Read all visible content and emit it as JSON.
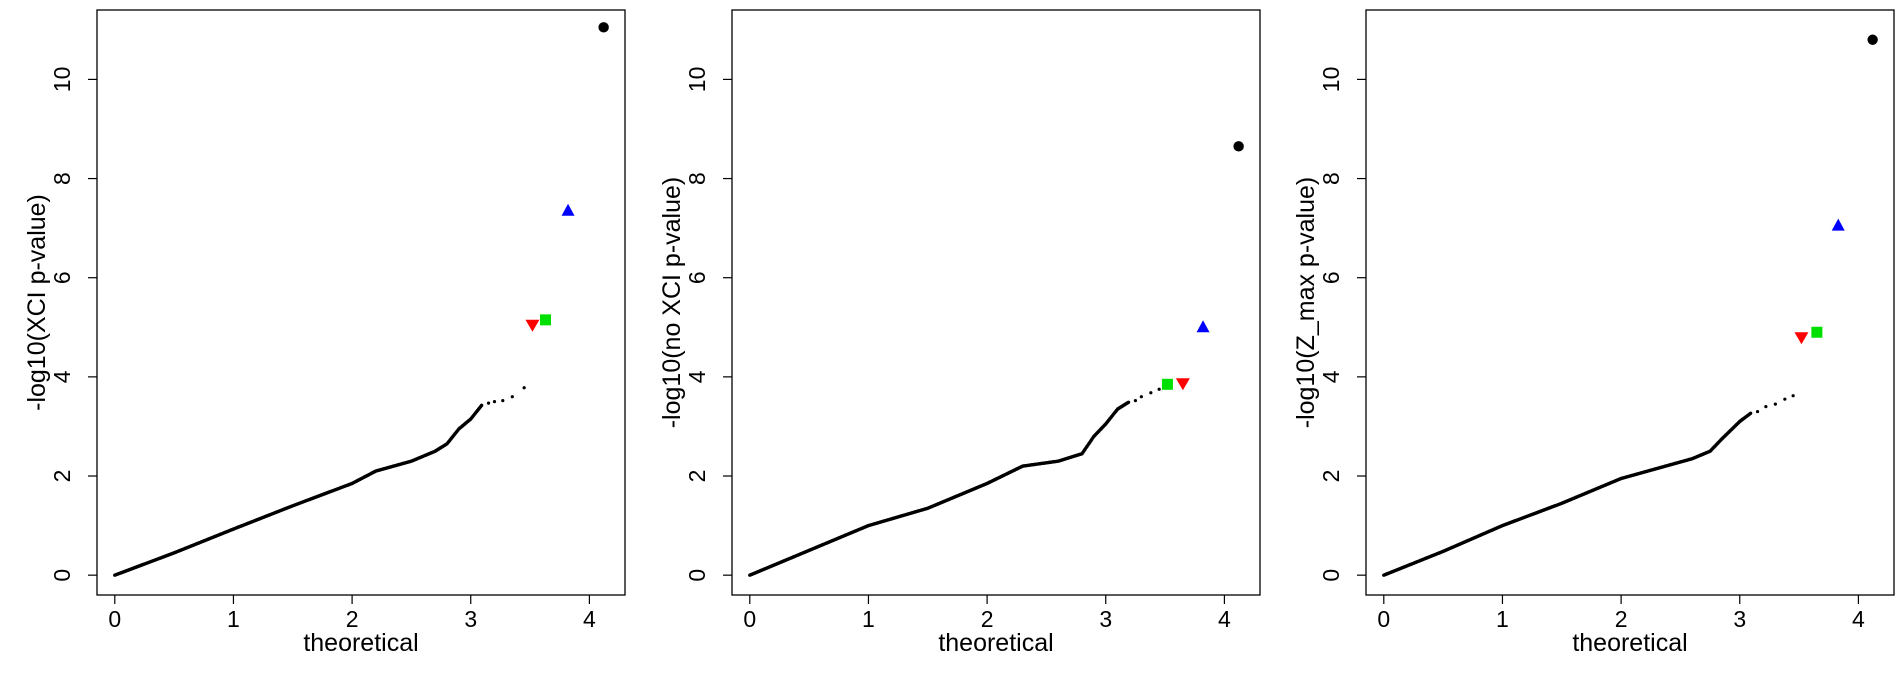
{
  "chart_data": [
    {
      "type": "scatter",
      "xlabel": "theoretical",
      "ylabel": "-log10(XCI p-value)",
      "xlim": [
        -0.15,
        4.3
      ],
      "ylim": [
        -0.4,
        11.4
      ],
      "xticks": [
        0,
        1,
        2,
        3,
        4
      ],
      "yticks": [
        0,
        2,
        4,
        6,
        8,
        10
      ],
      "grid": false,
      "qq_curve": [
        [
          0,
          0
        ],
        [
          0.5,
          0.45
        ],
        [
          1,
          0.93
        ],
        [
          1.5,
          1.4
        ],
        [
          2,
          1.85
        ],
        [
          2.2,
          2.1
        ],
        [
          2.5,
          2.3
        ],
        [
          2.7,
          2.5
        ],
        [
          2.8,
          2.65
        ],
        [
          2.9,
          2.95
        ],
        [
          3.0,
          3.15
        ],
        [
          3.1,
          3.45
        ]
      ],
      "tail_points": [
        [
          3.15,
          3.47
        ],
        [
          3.2,
          3.5
        ],
        [
          3.27,
          3.52
        ],
        [
          3.35,
          3.6
        ],
        [
          3.45,
          3.78
        ]
      ],
      "highlights": [
        {
          "x": 4.12,
          "y": 11.05,
          "color": "#000000",
          "shape": "circle"
        },
        {
          "x": 3.82,
          "y": 7.35,
          "color": "#0000ff",
          "shape": "triangle-up"
        },
        {
          "x": 3.63,
          "y": 5.15,
          "color": "#00e000",
          "shape": "square"
        },
        {
          "x": 3.52,
          "y": 5.05,
          "color": "#ff0000",
          "shape": "triangle-down"
        }
      ]
    },
    {
      "type": "scatter",
      "xlabel": "theoretical",
      "ylabel": "-log10(no XCI p-value)",
      "xlim": [
        -0.15,
        4.3
      ],
      "ylim": [
        -0.4,
        11.4
      ],
      "xticks": [
        0,
        1,
        2,
        3,
        4
      ],
      "yticks": [
        0,
        2,
        4,
        6,
        8,
        10
      ],
      "grid": false,
      "qq_curve": [
        [
          0,
          0
        ],
        [
          0.5,
          0.5
        ],
        [
          1,
          1.0
        ],
        [
          1.5,
          1.35
        ],
        [
          2,
          1.85
        ],
        [
          2.3,
          2.2
        ],
        [
          2.6,
          2.3
        ],
        [
          2.8,
          2.45
        ],
        [
          2.9,
          2.8
        ],
        [
          3.0,
          3.05
        ],
        [
          3.1,
          3.35
        ],
        [
          3.2,
          3.5
        ]
      ],
      "tail_points": [
        [
          3.25,
          3.52
        ],
        [
          3.3,
          3.6
        ],
        [
          3.38,
          3.68
        ],
        [
          3.45,
          3.75
        ]
      ],
      "highlights": [
        {
          "x": 4.12,
          "y": 8.65,
          "color": "#000000",
          "shape": "circle"
        },
        {
          "x": 3.82,
          "y": 5.0,
          "color": "#0000ff",
          "shape": "triangle-up"
        },
        {
          "x": 3.52,
          "y": 3.85,
          "color": "#00e000",
          "shape": "square"
        },
        {
          "x": 3.65,
          "y": 3.87,
          "color": "#ff0000",
          "shape": "triangle-down"
        }
      ]
    },
    {
      "type": "scatter",
      "xlabel": "theoretical",
      "ylabel": "-log10(Z_max p-value)",
      "xlim": [
        -0.15,
        4.3
      ],
      "ylim": [
        -0.4,
        11.4
      ],
      "xticks": [
        0,
        1,
        2,
        3,
        4
      ],
      "yticks": [
        0,
        2,
        4,
        6,
        8,
        10
      ],
      "grid": false,
      "qq_curve": [
        [
          0,
          0
        ],
        [
          0.5,
          0.48
        ],
        [
          1,
          1.0
        ],
        [
          1.5,
          1.45
        ],
        [
          2,
          1.95
        ],
        [
          2.3,
          2.15
        ],
        [
          2.6,
          2.35
        ],
        [
          2.75,
          2.5
        ],
        [
          2.85,
          2.75
        ],
        [
          3.0,
          3.1
        ],
        [
          3.1,
          3.28
        ]
      ],
      "tail_points": [
        [
          3.15,
          3.3
        ],
        [
          3.22,
          3.4
        ],
        [
          3.3,
          3.45
        ],
        [
          3.38,
          3.55
        ],
        [
          3.45,
          3.62
        ]
      ],
      "highlights": [
        {
          "x": 4.12,
          "y": 10.8,
          "color": "#000000",
          "shape": "circle"
        },
        {
          "x": 3.83,
          "y": 7.05,
          "color": "#0000ff",
          "shape": "triangle-up"
        },
        {
          "x": 3.65,
          "y": 4.9,
          "color": "#00e000",
          "shape": "square"
        },
        {
          "x": 3.52,
          "y": 4.8,
          "color": "#ff0000",
          "shape": "triangle-down"
        }
      ]
    }
  ]
}
